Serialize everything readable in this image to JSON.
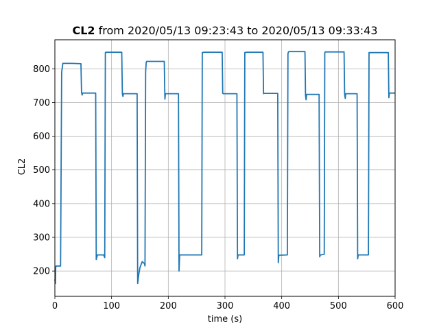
{
  "chart_data": {
    "type": "line",
    "title_bold": "CL2",
    "title_rest": " from 2020/05/13 09:23:43 to 2020/05/13 09:33:43",
    "xlabel": "time (s)",
    "ylabel": "CL2",
    "xlim": [
      0,
      600
    ],
    "ylim": [
      125,
      886
    ],
    "xticks": [
      0,
      100,
      200,
      300,
      400,
      500,
      600
    ],
    "yticks": [
      200,
      300,
      400,
      500,
      600,
      700,
      800
    ],
    "grid": true,
    "colors": {
      "line": "#1f77b4",
      "grid": "#b0b0b0",
      "axes": "#000000"
    },
    "series": [
      {
        "x": [
          0,
          1,
          1.5,
          2,
          10,
          12,
          14,
          18,
          30,
          46,
          47,
          48,
          49,
          72,
          73,
          75,
          86,
          88,
          89,
          90,
          118,
          119,
          120,
          121,
          145,
          146,
          148,
          150,
          154,
          158,
          159,
          160,
          161,
          162,
          163,
          193,
          194,
          195,
          196,
          218,
          219,
          220,
          221,
          259,
          260,
          261,
          262,
          295,
          296,
          297,
          298,
          321,
          322,
          323,
          324,
          334,
          335,
          336,
          337,
          367,
          368,
          369,
          370,
          393,
          394,
          395,
          396,
          410,
          411,
          412,
          413,
          441,
          442,
          443,
          444,
          466,
          467,
          468,
          469,
          475,
          476,
          477,
          478,
          510,
          511,
          512,
          513,
          533,
          534,
          535,
          536,
          553,
          554,
          555,
          556,
          588,
          589,
          590,
          591,
          600
        ],
        "y": [
          175,
          163,
          210,
          215,
          215,
          790,
          816,
          816,
          816,
          815,
          730,
          722,
          728,
          728,
          234,
          248,
          248,
          240,
          848,
          849,
          849,
          725,
          718,
          726,
          726,
          163,
          190,
          210,
          228,
          222,
          215,
          790,
          818,
          822,
          822,
          822,
          710,
          726,
          726,
          726,
          200,
          248,
          248,
          248,
          848,
          848,
          849,
          849,
          727,
          726,
          726,
          726,
          236,
          248,
          248,
          248,
          848,
          848,
          849,
          849,
          726,
          727,
          727,
          727,
          225,
          247,
          247,
          248,
          845,
          850,
          851,
          851,
          722,
          708,
          724,
          724,
          242,
          248,
          248,
          250,
          848,
          850,
          850,
          850,
          726,
          712,
          726,
          726,
          236,
          248,
          248,
          248,
          848,
          848,
          848,
          848,
          714,
          728,
          728,
          728
        ]
      }
    ]
  }
}
